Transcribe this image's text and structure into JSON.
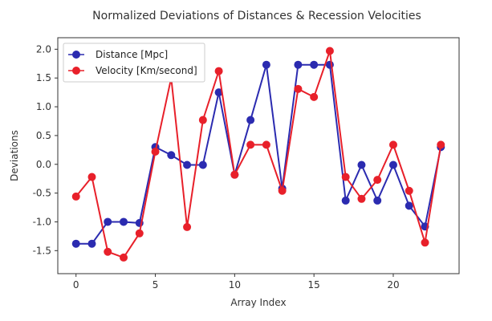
{
  "chart_data": {
    "type": "line",
    "title": "Normalized Deviations of Distances & Recession Velocities",
    "xlabel": "Array Index",
    "ylabel": "Deviations",
    "xlim": [
      -1.15,
      24.15
    ],
    "ylim": [
      -1.9,
      2.2
    ],
    "xticks": [
      0,
      5,
      10,
      15,
      20
    ],
    "yticks": [
      -1.5,
      -1.0,
      -0.5,
      0.0,
      0.5,
      1.0,
      1.5,
      2.0
    ],
    "xtick_labels": [
      "0",
      "5",
      "10",
      "15",
      "20"
    ],
    "ytick_labels": [
      "-1.5",
      "-1.0",
      "-0.5",
      "0.0",
      "0.5",
      "1.0",
      "1.5",
      "2.0"
    ],
    "grid": false,
    "legend_position": "top-left",
    "x": [
      0,
      1,
      2,
      3,
      4,
      5,
      6,
      7,
      8,
      9,
      10,
      11,
      12,
      13,
      14,
      15,
      16,
      17,
      18,
      19,
      20,
      21,
      22,
      23
    ],
    "series": [
      {
        "name": "Distance [Mpc]",
        "color": "#2b2bb0",
        "values": [
          -1.38,
          -1.38,
          -1.0,
          -1.0,
          -1.02,
          0.3,
          0.16,
          -0.01,
          -0.01,
          1.25,
          -0.18,
          0.77,
          1.73,
          -0.42,
          1.73,
          1.73,
          1.73,
          -0.63,
          -0.01,
          -0.63,
          -0.01,
          -0.72,
          -1.08,
          0.3
        ]
      },
      {
        "name": "Velocity [Km/second]",
        "color": "#e8202a",
        "values": [
          -0.56,
          -0.22,
          -1.52,
          -1.62,
          -1.2,
          0.22,
          1.5,
          -1.09,
          0.77,
          1.62,
          -0.18,
          0.34,
          0.34,
          -0.46,
          1.31,
          1.17,
          1.97,
          -0.22,
          -0.6,
          -0.27,
          0.34,
          -0.46,
          -1.36,
          0.34
        ]
      }
    ]
  }
}
